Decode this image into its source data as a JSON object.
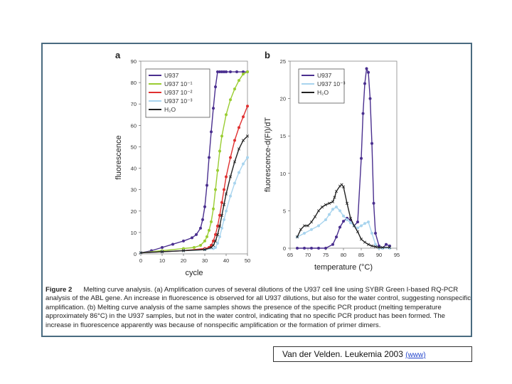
{
  "colors": {
    "U937": "#4a2f8f",
    "U937_1": "#9acd32",
    "U937_2": "#e03030",
    "U937_3": "#a8d4ee",
    "H2O": "#222222",
    "frame": "#4a6b80"
  },
  "chart_data": [
    {
      "panel": "a",
      "type": "line",
      "xlabel": "cycle",
      "ylabel": "fluorescence",
      "xlim": [
        0,
        50
      ],
      "ylim": [
        0,
        90
      ],
      "xticks": [
        0,
        10,
        20,
        30,
        40,
        50
      ],
      "yticks": [
        0,
        10,
        20,
        30,
        40,
        50,
        60,
        70,
        80,
        90
      ],
      "legend": [
        "U937",
        "U937 10⁻¹",
        "U937 10⁻²",
        "U937 10⁻³",
        "H₂O"
      ],
      "series": [
        {
          "name": "U937",
          "color_key": "U937",
          "marker": "dot",
          "x": [
            0,
            5,
            10,
            15,
            20,
            24,
            26,
            28,
            29,
            30,
            31,
            32,
            33,
            34,
            35,
            36,
            37,
            38,
            39,
            40,
            42,
            45,
            48,
            50
          ],
          "y": [
            0.5,
            1.5,
            3,
            4.5,
            6,
            7.5,
            9,
            12,
            16,
            22,
            32,
            45,
            57,
            68,
            78,
            85,
            85,
            85,
            85,
            85,
            85,
            85,
            85,
            85
          ]
        },
        {
          "name": "U937 10⁻¹",
          "color_key": "U937_1",
          "marker": "dot",
          "x": [
            0,
            10,
            20,
            25,
            28,
            30,
            31,
            32,
            33,
            34,
            35,
            36,
            37,
            38,
            40,
            42,
            44,
            46,
            48,
            50
          ],
          "y": [
            0.5,
            1.5,
            2.5,
            3,
            4,
            6,
            8,
            11,
            15,
            21,
            30,
            39,
            48,
            55,
            65,
            72,
            77,
            81,
            84,
            85
          ]
        },
        {
          "name": "U937 10⁻²",
          "color_key": "U937_2",
          "marker": "dot",
          "x": [
            0,
            10,
            20,
            30,
            32,
            33,
            34,
            35,
            36,
            37,
            38,
            39,
            40,
            42,
            44,
            46,
            48,
            50
          ],
          "y": [
            0.5,
            1,
            1.5,
            2.5,
            3,
            4,
            6,
            9,
            13,
            18,
            24,
            30,
            36,
            45,
            53,
            59,
            64,
            69
          ]
        },
        {
          "name": "U937 10⁻³",
          "color_key": "U937_3",
          "marker": "dot",
          "x": [
            0,
            10,
            20,
            30,
            34,
            35,
            36,
            37,
            38,
            39,
            40,
            42,
            44,
            46,
            48,
            50
          ],
          "y": [
            0.5,
            1,
            1.5,
            2,
            2.5,
            3,
            5,
            8,
            12,
            16,
            20,
            27,
            33,
            38,
            42,
            45
          ]
        },
        {
          "name": "H₂O",
          "color_key": "H2O",
          "marker": "x",
          "x": [
            0,
            10,
            20,
            30,
            33,
            34,
            35,
            36,
            37,
            38,
            39,
            40,
            42,
            44,
            46,
            48,
            50
          ],
          "y": [
            0.5,
            1,
            1.5,
            2,
            3,
            4,
            6,
            9,
            13,
            18,
            23,
            28,
            36,
            43,
            49,
            53,
            55
          ]
        }
      ]
    },
    {
      "panel": "b",
      "type": "line",
      "xlabel": "temperature (°C)",
      "ylabel": "fluorescence-d(FI)/dT",
      "xlim": [
        65,
        95
      ],
      "ylim": [
        0,
        25
      ],
      "xticks": [
        65,
        70,
        75,
        80,
        85,
        90,
        95
      ],
      "yticks": [
        0,
        5,
        10,
        15,
        20,
        25
      ],
      "legend": [
        "U937",
        "U937 10⁻³",
        "H₂O"
      ],
      "series": [
        {
          "name": "U937",
          "color_key": "U937",
          "marker": "dot",
          "x": [
            67,
            69,
            71,
            73,
            75,
            77,
            78,
            79,
            80,
            81,
            82,
            83,
            84,
            85,
            85.5,
            86,
            86.5,
            87,
            87.5,
            88,
            88.5,
            89,
            90,
            91,
            92,
            93
          ],
          "y": [
            0,
            0,
            0,
            0,
            0,
            0.5,
            1.5,
            2.8,
            3.6,
            4,
            3.8,
            3,
            3.5,
            12,
            18,
            22,
            24,
            23.5,
            20,
            14,
            6,
            2,
            0.3,
            0,
            0.5,
            0.3
          ]
        },
        {
          "name": "U937 10⁻³",
          "color_key": "U937_3",
          "marker": "dot",
          "x": [
            67,
            69,
            71,
            73,
            75,
            76,
            77,
            78,
            79,
            80,
            81,
            82,
            83,
            84,
            85,
            86,
            87,
            88,
            89,
            90,
            91,
            93
          ],
          "y": [
            1.5,
            2,
            2.5,
            3,
            3.8,
            4.5,
            5.2,
            5.5,
            5,
            4.3,
            3.8,
            3.4,
            3,
            2.7,
            3,
            3.3,
            3.5,
            2,
            0.5,
            0,
            0,
            0
          ]
        },
        {
          "name": "H₂O",
          "color_key": "H2O",
          "marker": "x",
          "x": [
            67,
            68,
            69,
            70,
            71,
            72,
            73,
            74,
            75,
            76,
            77,
            77.5,
            78,
            79,
            79.5,
            80,
            81,
            82,
            83,
            84,
            85,
            86,
            87,
            88,
            89,
            90,
            91,
            93
          ],
          "y": [
            1.5,
            2.5,
            3,
            3,
            3.5,
            4.2,
            5,
            5.5,
            5.8,
            6,
            6.2,
            6.8,
            7.6,
            8.3,
            8.5,
            8.2,
            6,
            4,
            3,
            2.2,
            1.2,
            0.8,
            0.5,
            0.3,
            0.2,
            0.1,
            0.1,
            0.1
          ]
        }
      ]
    }
  ],
  "panel_a_label": "a",
  "panel_b_label": "b",
  "caption": {
    "figure_label": "Figure 2",
    "text": "Melting curve analysis. (a) Amplification curves of several dilutions of the U937 cell line using SYBR Green I-based RQ-PCR analysis of the ABL gene. An increase in fluorescence is observed for all U937 dilutions, but also for the water control, suggesting nonspecific amplification. (b) Melting curve analysis of the same samples shows the presence of the specific PCR product (melting temperature approximately 86°C) in the U937 samples, but not in the water control, indicating that no specific PCR product has been formed. The increase in fluorescence apparently was because of nonspecific amplification or the formation of primer dimers."
  },
  "citation": {
    "text": "Van der Velden. Leukemia 2003",
    "link": "(www)"
  }
}
